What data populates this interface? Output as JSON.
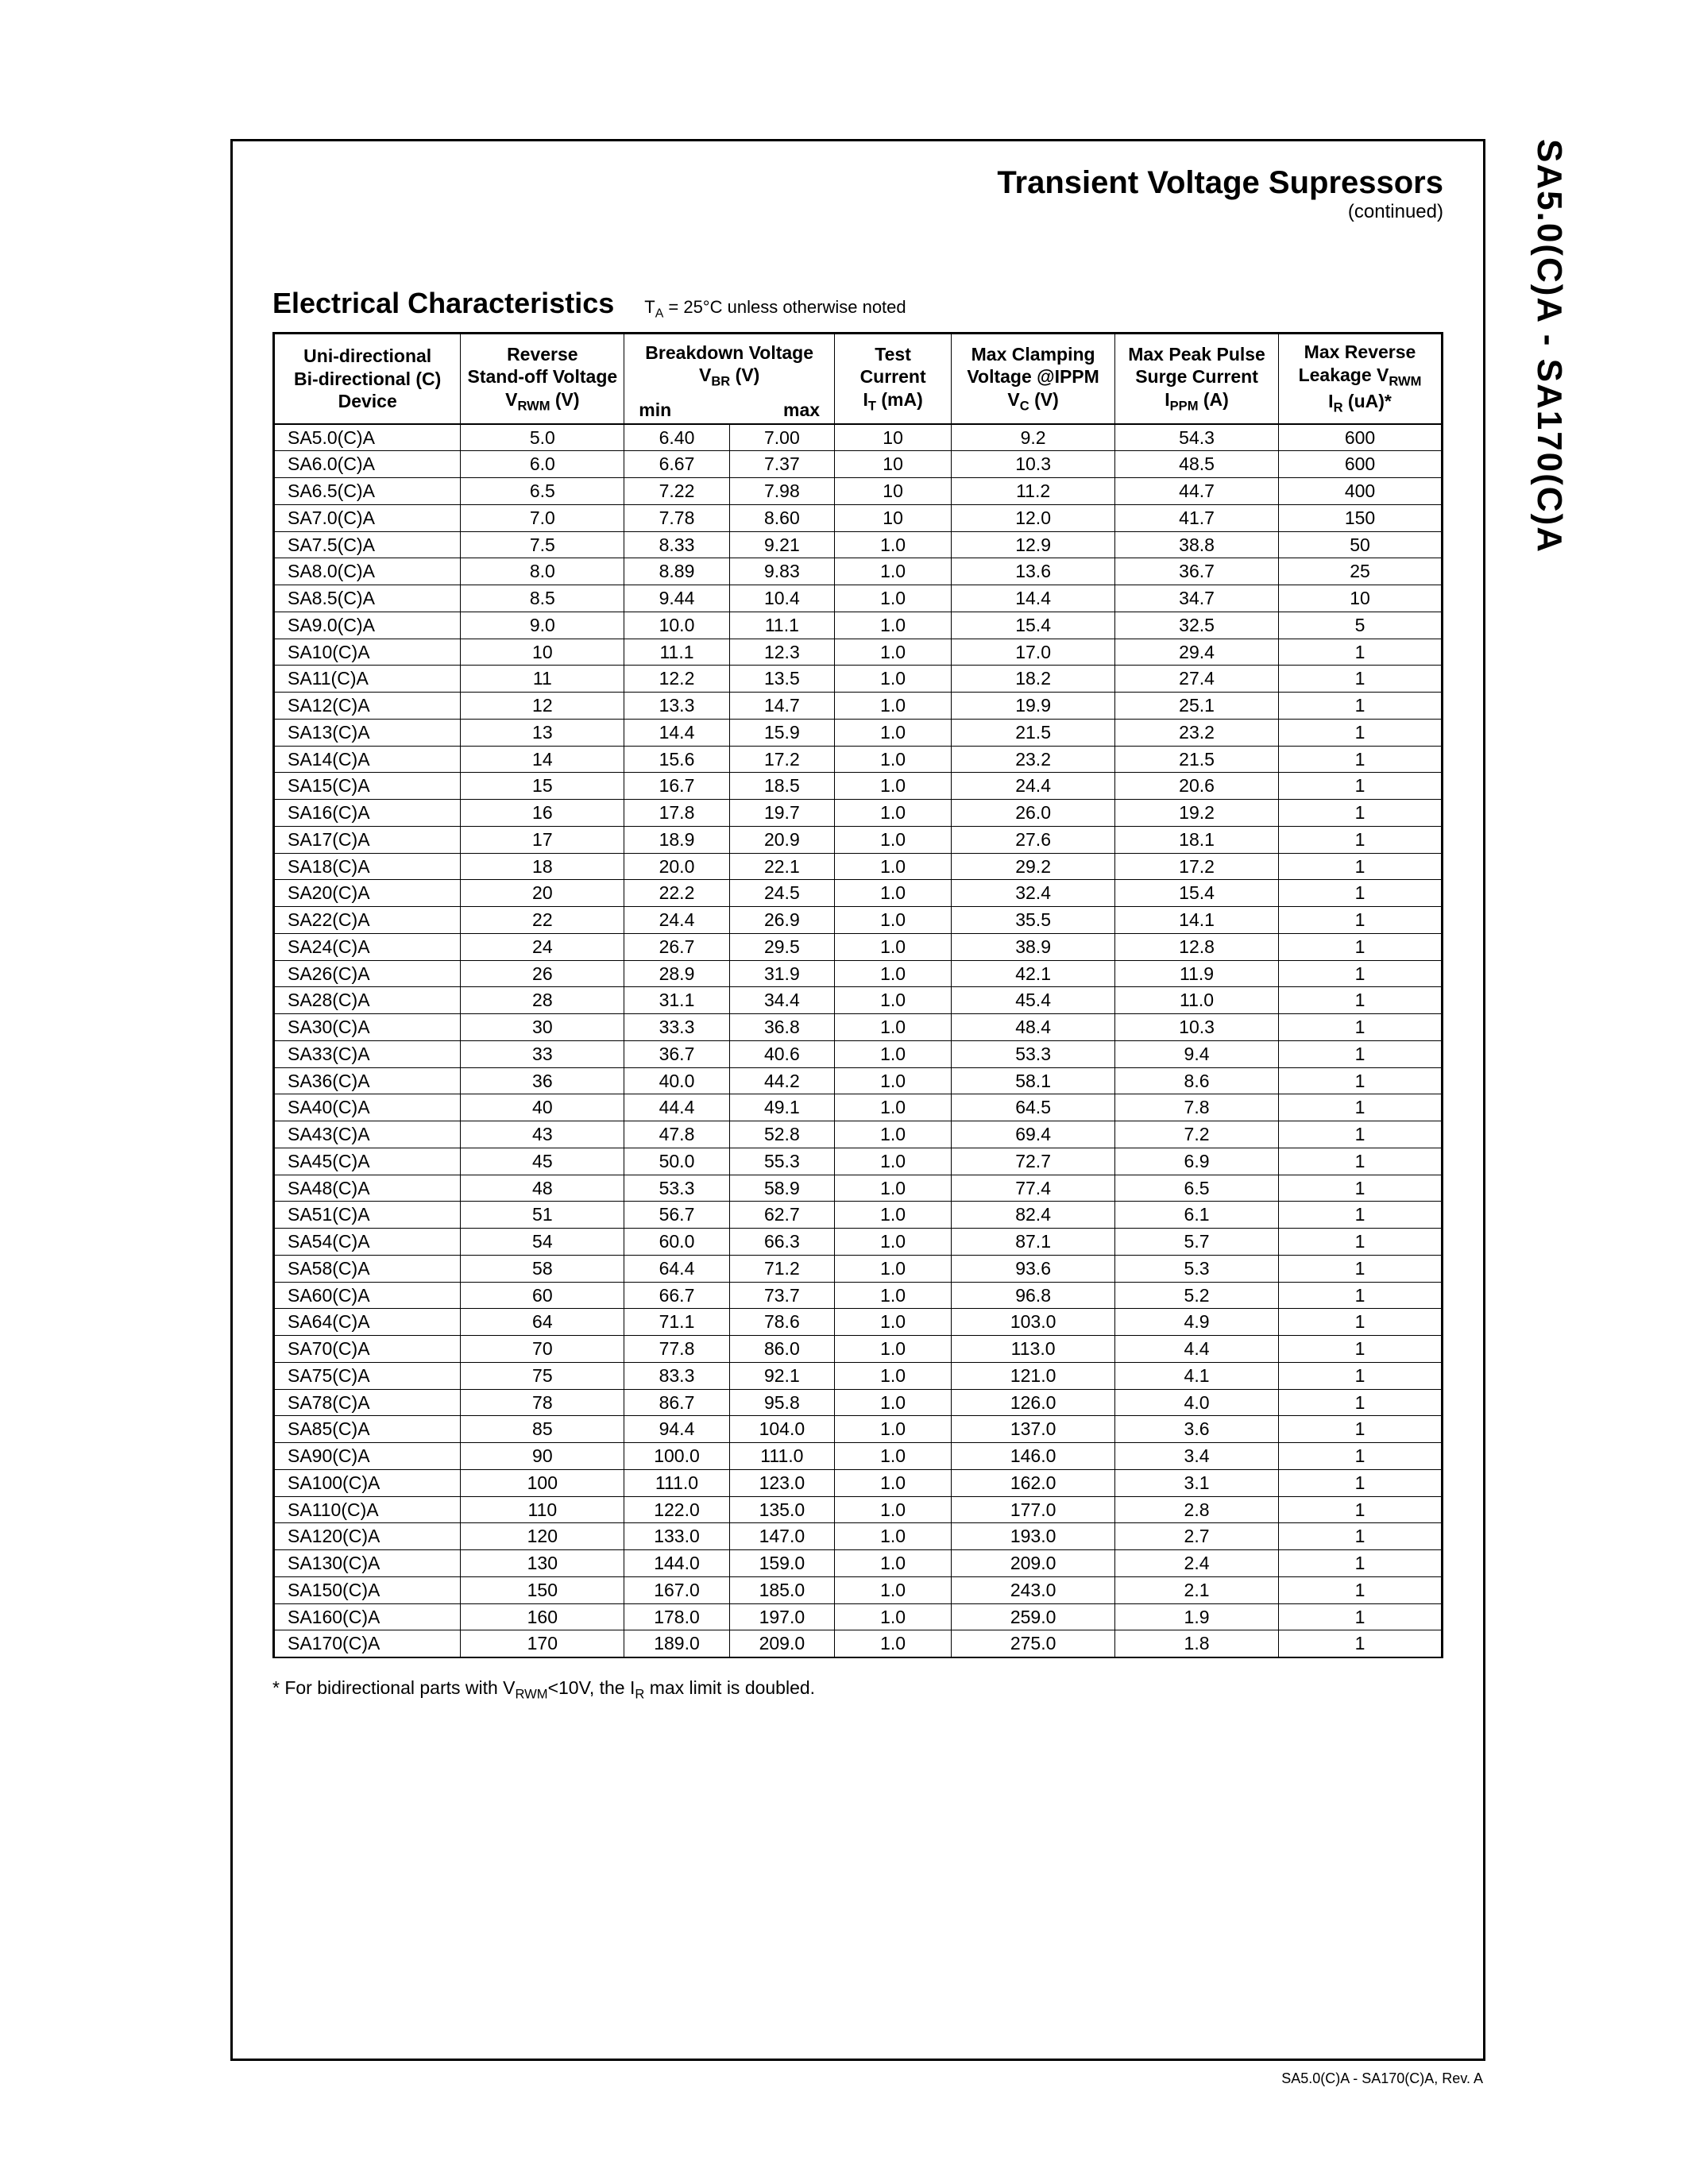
{
  "side_label": "SA5.0(C)A - SA170(C)A",
  "header": {
    "title": "Transient Voltage Supressors",
    "sub": "(continued)"
  },
  "section": {
    "title": "Electrical Characteristics",
    "note_html": "T<sub>A</sub> = 25°C unless otherwise noted"
  },
  "table": {
    "col_widths_pct": [
      16,
      14,
      9,
      9,
      10,
      14,
      14,
      14
    ],
    "headers": {
      "c1_l1": "Uni-directional",
      "c1_l2": "Bi-directional (C)",
      "c1_l3": "Device",
      "c2_l1": "Reverse",
      "c2_l2": "Stand-off Voltage",
      "c2_l3_html": "V<sub>RWM</sub> (V)",
      "c3_l1": "Breakdown Voltage",
      "c3_l2_html": "V<sub>BR</sub> (V)",
      "c3_min": "min",
      "c3_max": "max",
      "c4_l1": "Test",
      "c4_l2": "Current",
      "c4_l3_html": "I<sub>T</sub> (mA)",
      "c5_l1": "Max  Clamping",
      "c5_l2": "Voltage @IPPM",
      "c5_l3_html": "V<sub>C</sub> (V)",
      "c6_l1": "Max Peak Pulse",
      "c6_l2": "Surge Current",
      "c6_l3_html": "I<sub>PPM</sub> (A)",
      "c7_l1": "Max Reverse",
      "c7_l2_html": "Leakage V<sub>RWM</sub>",
      "c7_l3_html": "I<sub>R</sub> (uA)*"
    },
    "rows": [
      [
        "SA5.0(C)A",
        "5.0",
        "6.40",
        "7.00",
        "10",
        "9.2",
        "54.3",
        "600"
      ],
      [
        "SA6.0(C)A",
        "6.0",
        "6.67",
        "7.37",
        "10",
        "10.3",
        "48.5",
        "600"
      ],
      [
        "SA6.5(C)A",
        "6.5",
        "7.22",
        "7.98",
        "10",
        "11.2",
        "44.7",
        "400"
      ],
      [
        "SA7.0(C)A",
        "7.0",
        "7.78",
        "8.60",
        "10",
        "12.0",
        "41.7",
        "150"
      ],
      [
        "SA7.5(C)A",
        "7.5",
        "8.33",
        "9.21",
        "1.0",
        "12.9",
        "38.8",
        "50"
      ],
      [
        "SA8.0(C)A",
        "8.0",
        "8.89",
        "9.83",
        "1.0",
        "13.6",
        "36.7",
        "25"
      ],
      [
        "SA8.5(C)A",
        "8.5",
        "9.44",
        "10.4",
        "1.0",
        "14.4",
        "34.7",
        "10"
      ],
      [
        "SA9.0(C)A",
        "9.0",
        "10.0",
        "11.1",
        "1.0",
        "15.4",
        "32.5",
        "5"
      ],
      [
        "SA10(C)A",
        "10",
        "11.1",
        "12.3",
        "1.0",
        "17.0",
        "29.4",
        "1"
      ],
      [
        "SA11(C)A",
        "11",
        "12.2",
        "13.5",
        "1.0",
        "18.2",
        "27.4",
        "1"
      ],
      [
        "SA12(C)A",
        "12",
        "13.3",
        "14.7",
        "1.0",
        "19.9",
        "25.1",
        "1"
      ],
      [
        "SA13(C)A",
        "13",
        "14.4",
        "15.9",
        "1.0",
        "21.5",
        "23.2",
        "1"
      ],
      [
        "SA14(C)A",
        "14",
        "15.6",
        "17.2",
        "1.0",
        "23.2",
        "21.5",
        "1"
      ],
      [
        "SA15(C)A",
        "15",
        "16.7",
        "18.5",
        "1.0",
        "24.4",
        "20.6",
        "1"
      ],
      [
        "SA16(C)A",
        "16",
        "17.8",
        "19.7",
        "1.0",
        "26.0",
        "19.2",
        "1"
      ],
      [
        "SA17(C)A",
        "17",
        "18.9",
        "20.9",
        "1.0",
        "27.6",
        "18.1",
        "1"
      ],
      [
        "SA18(C)A",
        "18",
        "20.0",
        "22.1",
        "1.0",
        "29.2",
        "17.2",
        "1"
      ],
      [
        "SA20(C)A",
        "20",
        "22.2",
        "24.5",
        "1.0",
        "32.4",
        "15.4",
        "1"
      ],
      [
        "SA22(C)A",
        "22",
        "24.4",
        "26.9",
        "1.0",
        "35.5",
        "14.1",
        "1"
      ],
      [
        "SA24(C)A",
        "24",
        "26.7",
        "29.5",
        "1.0",
        "38.9",
        "12.8",
        "1"
      ],
      [
        "SA26(C)A",
        "26",
        "28.9",
        "31.9",
        "1.0",
        "42.1",
        "11.9",
        "1"
      ],
      [
        "SA28(C)A",
        "28",
        "31.1",
        "34.4",
        "1.0",
        "45.4",
        "11.0",
        "1"
      ],
      [
        "SA30(C)A",
        "30",
        "33.3",
        "36.8",
        "1.0",
        "48.4",
        "10.3",
        "1"
      ],
      [
        "SA33(C)A",
        "33",
        "36.7",
        "40.6",
        "1.0",
        "53.3",
        "9.4",
        "1"
      ],
      [
        "SA36(C)A",
        "36",
        "40.0",
        "44.2",
        "1.0",
        "58.1",
        "8.6",
        "1"
      ],
      [
        "SA40(C)A",
        "40",
        "44.4",
        "49.1",
        "1.0",
        "64.5",
        "7.8",
        "1"
      ],
      [
        "SA43(C)A",
        "43",
        "47.8",
        "52.8",
        "1.0",
        "69.4",
        "7.2",
        "1"
      ],
      [
        "SA45(C)A",
        "45",
        "50.0",
        "55.3",
        "1.0",
        "72.7",
        "6.9",
        "1"
      ],
      [
        "SA48(C)A",
        "48",
        "53.3",
        "58.9",
        "1.0",
        "77.4",
        "6.5",
        "1"
      ],
      [
        "SA51(C)A",
        "51",
        "56.7",
        "62.7",
        "1.0",
        "82.4",
        "6.1",
        "1"
      ],
      [
        "SA54(C)A",
        "54",
        "60.0",
        "66.3",
        "1.0",
        "87.1",
        "5.7",
        "1"
      ],
      [
        "SA58(C)A",
        "58",
        "64.4",
        "71.2",
        "1.0",
        "93.6",
        "5.3",
        "1"
      ],
      [
        "SA60(C)A",
        "60",
        "66.7",
        "73.7",
        "1.0",
        "96.8",
        "5.2",
        "1"
      ],
      [
        "SA64(C)A",
        "64",
        "71.1",
        "78.6",
        "1.0",
        "103.0",
        "4.9",
        "1"
      ],
      [
        "SA70(C)A",
        "70",
        "77.8",
        "86.0",
        "1.0",
        "113.0",
        "4.4",
        "1"
      ],
      [
        "SA75(C)A",
        "75",
        "83.3",
        "92.1",
        "1.0",
        "121.0",
        "4.1",
        "1"
      ],
      [
        "SA78(C)A",
        "78",
        "86.7",
        "95.8",
        "1.0",
        "126.0",
        "4.0",
        "1"
      ],
      [
        "SA85(C)A",
        "85",
        "94.4",
        "104.0",
        "1.0",
        "137.0",
        "3.6",
        "1"
      ],
      [
        "SA90(C)A",
        "90",
        "100.0",
        "111.0",
        "1.0",
        "146.0",
        "3.4",
        "1"
      ],
      [
        "SA100(C)A",
        "100",
        "111.0",
        "123.0",
        "1.0",
        "162.0",
        "3.1",
        "1"
      ],
      [
        "SA110(C)A",
        "110",
        "122.0",
        "135.0",
        "1.0",
        "177.0",
        "2.8",
        "1"
      ],
      [
        "SA120(C)A",
        "120",
        "133.0",
        "147.0",
        "1.0",
        "193.0",
        "2.7",
        "1"
      ],
      [
        "SA130(C)A",
        "130",
        "144.0",
        "159.0",
        "1.0",
        "209.0",
        "2.4",
        "1"
      ],
      [
        "SA150(C)A",
        "150",
        "167.0",
        "185.0",
        "1.0",
        "243.0",
        "2.1",
        "1"
      ],
      [
        "SA160(C)A",
        "160",
        "178.0",
        "197.0",
        "1.0",
        "259.0",
        "1.9",
        "1"
      ],
      [
        "SA170(C)A",
        "170",
        "189.0",
        "209.0",
        "1.0",
        "275.0",
        "1.8",
        "1"
      ]
    ]
  },
  "footnote_html": "* For bidirectional parts with V<sub>RWM</sub>&lt;10V, the I<sub>R</sub> max limit is doubled.",
  "footer": "SA5.0(C)A - SA170(C)A, Rev. A"
}
